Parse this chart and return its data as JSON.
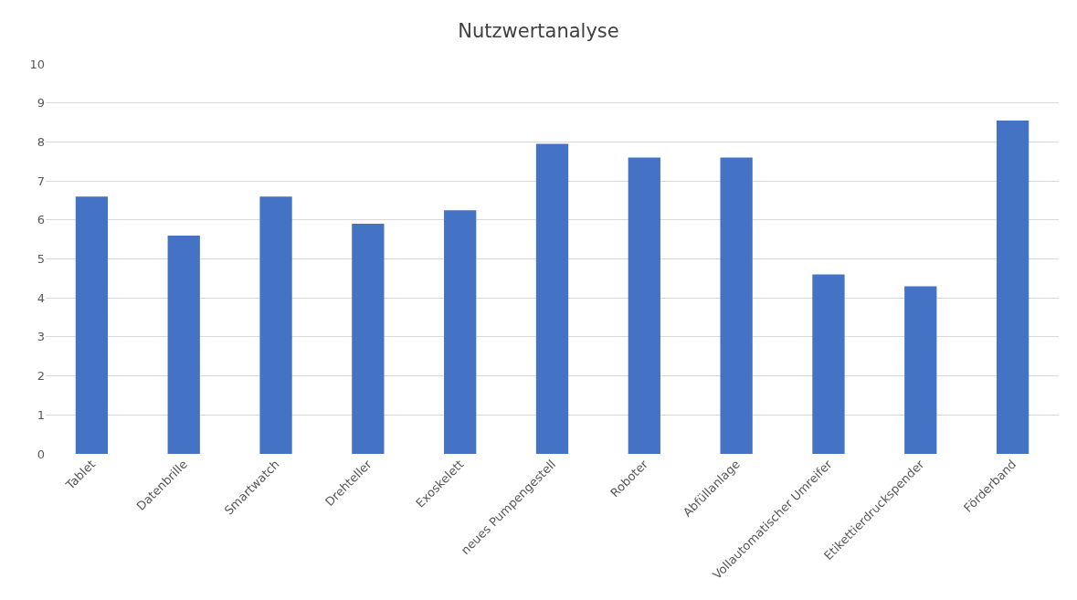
{
  "chart_data": {
    "type": "bar",
    "title": "Nutzwertanalyse",
    "categories": [
      "Tablet",
      "Datenbrille",
      "Smartwatch",
      "Drehteller",
      "Exoskelett",
      "neues Pumpengestell",
      "Roboter",
      "Abfüllanlage",
      "Vollautomatischer Umreifer",
      "Etikettierdruckspender",
      "Förderband"
    ],
    "values": [
      6.6,
      5.6,
      6.6,
      5.9,
      6.25,
      7.95,
      7.6,
      7.6,
      4.6,
      4.3,
      8.55
    ],
    "color": "#4472c4",
    "ylim": [
      0,
      10
    ],
    "yticks": [
      0,
      1,
      2,
      3,
      4,
      5,
      6,
      7,
      8,
      9,
      10
    ],
    "grid": "y"
  }
}
